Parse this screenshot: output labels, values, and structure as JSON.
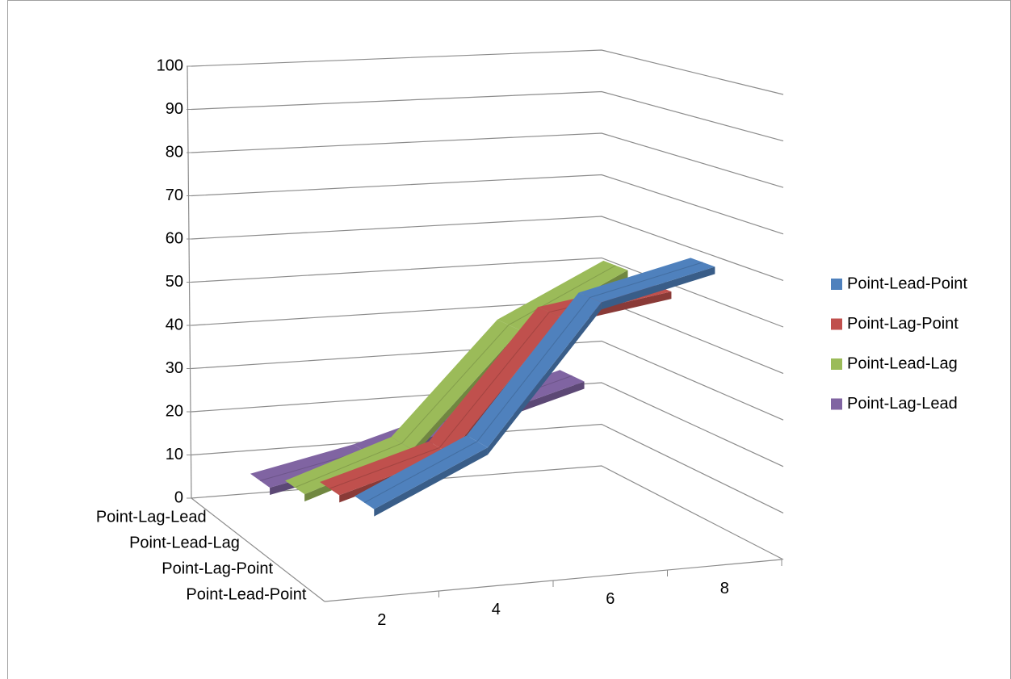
{
  "chart_data": {
    "type": "line3d",
    "categories": [
      "2",
      "4",
      "6",
      "8"
    ],
    "series": [
      {
        "name": "Point-Lead-Point",
        "color": "#4f81bd",
        "values": [
          17,
          28,
          57,
          63
        ]
      },
      {
        "name": "Point-Lag-Point",
        "color": "#c0504d",
        "values": [
          15,
          22,
          50,
          54
        ]
      },
      {
        "name": "Point-Lead-Lag",
        "color": "#9bbb59",
        "values": [
          10,
          18,
          43,
          55
        ]
      },
      {
        "name": "Point-Lag-Lead",
        "color": "#8064a2",
        "values": [
          6,
          11,
          18,
          25
        ]
      }
    ],
    "ylim": [
      0,
      100
    ],
    "yticks": [
      0,
      10,
      20,
      30,
      40,
      50,
      60,
      70,
      80,
      90,
      100
    ],
    "grid": true,
    "legend": "right"
  }
}
